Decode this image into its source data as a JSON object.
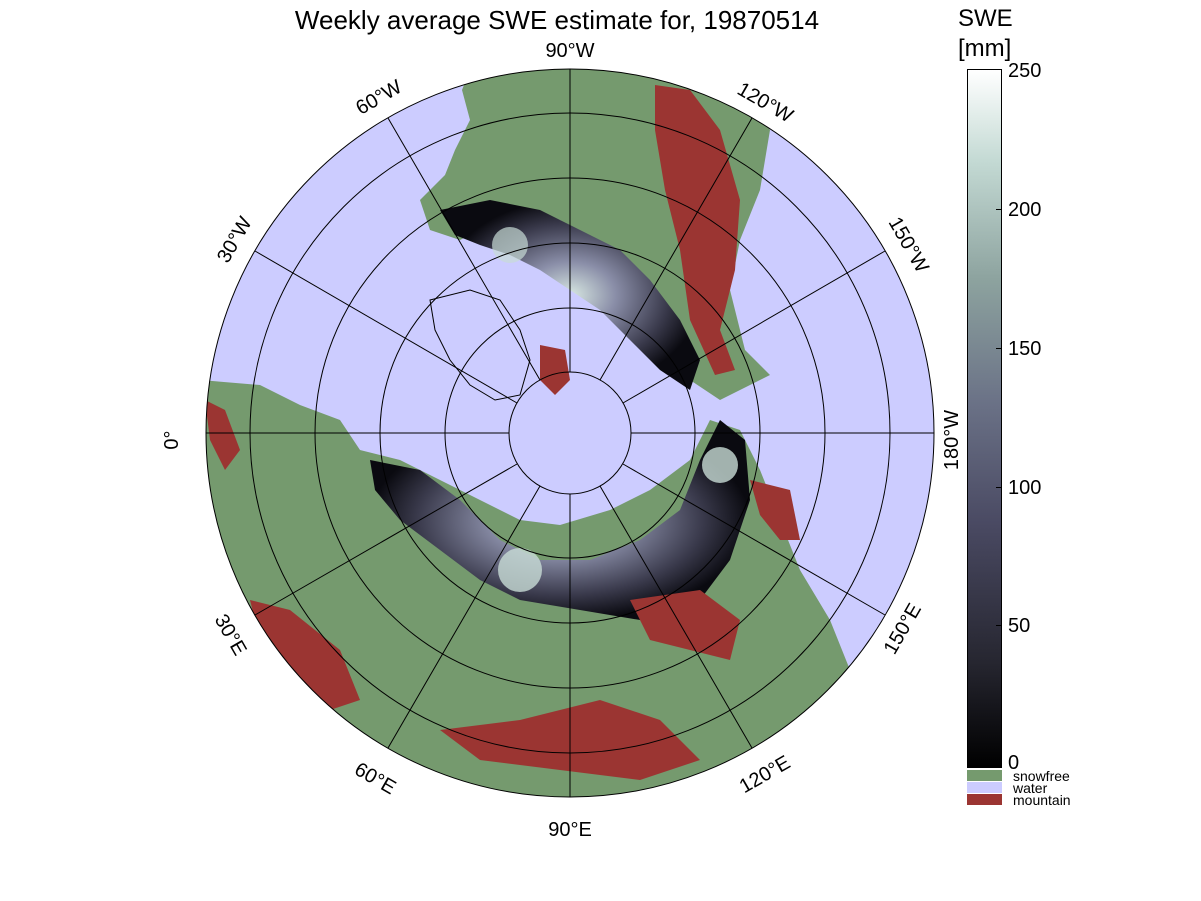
{
  "title": "Weekly average SWE estimate for, 19870514",
  "colorbar": {
    "title_line1": "SWE",
    "title_line2": "[mm]",
    "ticks": [
      "250",
      "200",
      "150",
      "100",
      "50",
      "0"
    ]
  },
  "legend": [
    {
      "label": "snowfree",
      "color": "#759a6e"
    },
    {
      "label": "water",
      "color": "#ccccff"
    },
    {
      "label": "mountain",
      "color": "#9b3532"
    }
  ],
  "longitude_labels": {
    "lon_90W": "90°W",
    "lon_120W": "120°W",
    "lon_150W": "150°W",
    "lon_180W": "180°W",
    "lon_150E": "150°E",
    "lon_120E": "120°E",
    "lon_90E": "90°E",
    "lon_60E": "60°E",
    "lon_30E": "30°E",
    "lon_0": "0°",
    "lon_30W": "30°W",
    "lon_60W": "60°W"
  },
  "colors": {
    "water": "#ccccff",
    "snowfree": "#759a6e",
    "mountain": "#9b3532",
    "snow_low": "#000000",
    "snow_high": "#ffffff"
  }
}
